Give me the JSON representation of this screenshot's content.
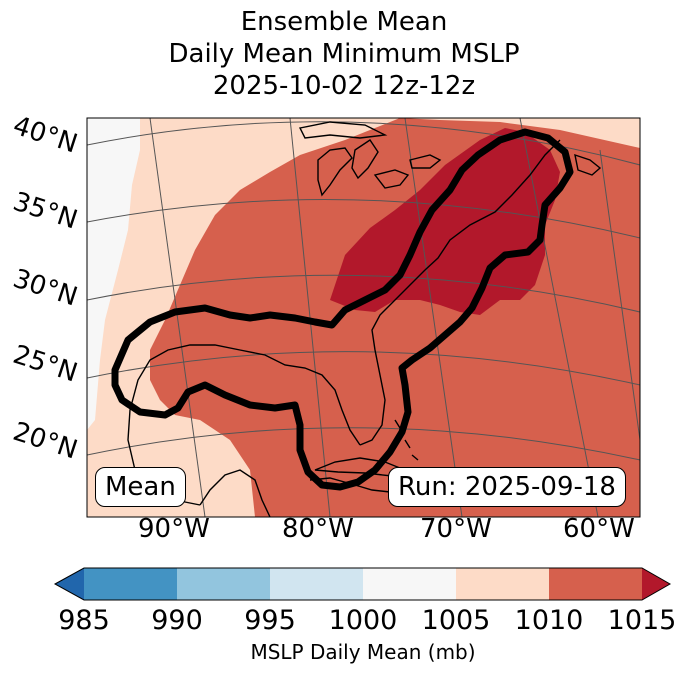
{
  "title": {
    "line1": "Ensemble Mean",
    "line2": "Daily Mean Minimum MSLP",
    "line3": "2025-10-02 12z-12z"
  },
  "map": {
    "lat_labels": [
      "40°N",
      "35°N",
      "30°N",
      "25°N",
      "20°N"
    ],
    "lon_labels": [
      "90°W",
      "80°W",
      "70°W",
      "60°W"
    ],
    "left_box_label": "Mean",
    "right_box_label": "Run: 2025-09-18"
  },
  "colorbar": {
    "ticks": [
      "985",
      "990",
      "995",
      "1000",
      "1005",
      "1010",
      "1015"
    ],
    "label": "MSLP Daily Mean (mb)",
    "colors": [
      "#2166ac",
      "#4393c3",
      "#92c5de",
      "#d1e5f0",
      "#f7f7f7",
      "#fddbc7",
      "#d6604d",
      "#b2182b"
    ]
  },
  "field_colors": {
    "1000_1005": "#f7f7f7",
    "1005_1010": "#fddbc7",
    "1010_1015": "#d6604d",
    "above_1015": "#b2182b",
    "contour": "#000000",
    "coast": "#000000",
    "grid": "#555555"
  }
}
